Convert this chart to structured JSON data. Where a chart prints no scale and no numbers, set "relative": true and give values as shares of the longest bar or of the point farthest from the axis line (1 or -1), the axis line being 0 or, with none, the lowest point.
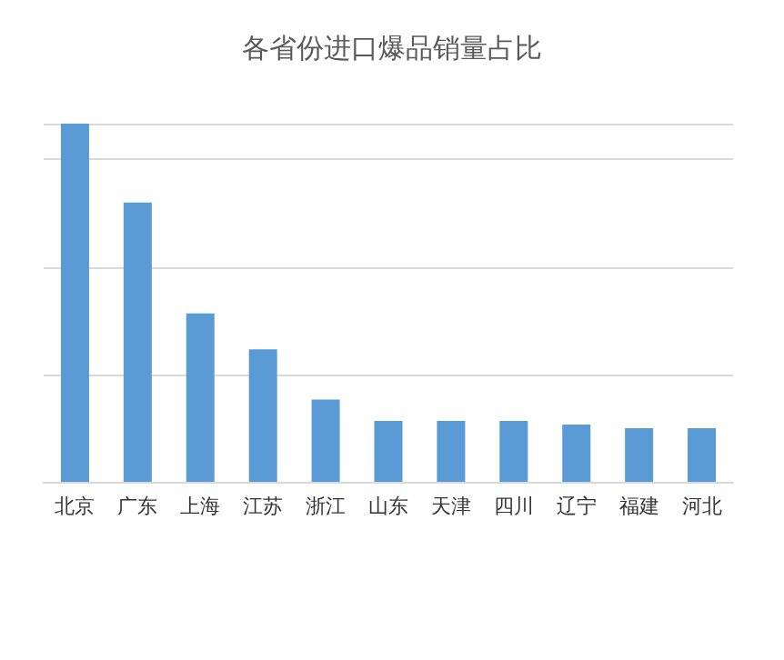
{
  "chart_data": {
    "type": "bar",
    "title": "各省份进口爆品销量占比",
    "categories": [
      "北京",
      "广东",
      "上海",
      "江苏",
      "浙江",
      "山东",
      "天津",
      "四川",
      "辽宁",
      "福建",
      "河北"
    ],
    "values": [
      1,
      0.78,
      0.47,
      0.37,
      0.23,
      0.17,
      0.17,
      0.17,
      0.16,
      0.15,
      0.15
    ],
    "color": "#5b9bd5",
    "relative": true,
    "grid": "y"
  }
}
